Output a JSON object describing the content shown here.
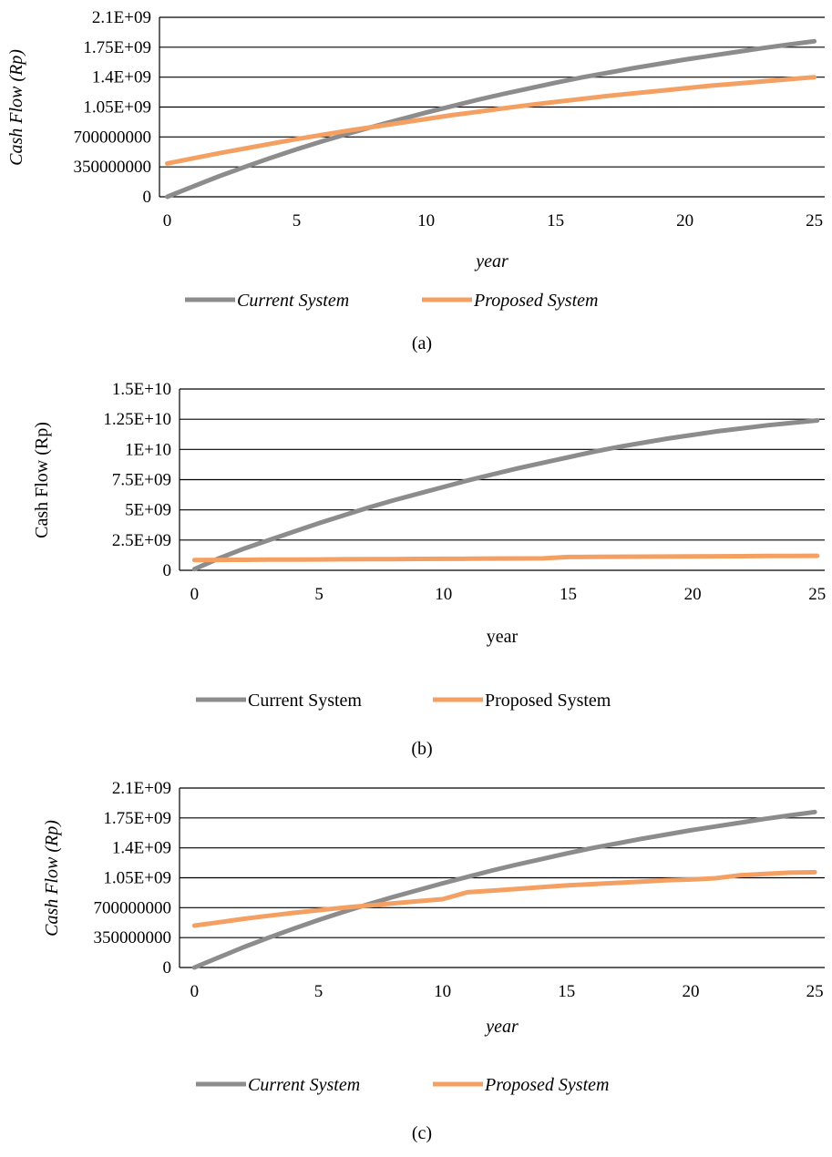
{
  "chart_data": [
    {
      "type": "line",
      "panel_label": "(a)",
      "xlabel": "year",
      "ylabel": "Cash Flow (Rp)",
      "italic_labels": true,
      "xlim": [
        -0.3,
        25.4
      ],
      "ylim": [
        0,
        2100000000
      ],
      "xticks": [
        "0",
        "5",
        "10",
        "15",
        "20",
        "25"
      ],
      "yticks": [
        "0",
        "350000000",
        "700000000",
        "1.05E+09",
        "1.4E+09",
        "1.75E+09",
        "2.1E+09"
      ],
      "grid": "horizontal",
      "legend_position": "bottom",
      "x": [
        0,
        1,
        2,
        3,
        4,
        5,
        6,
        7,
        8,
        9,
        10,
        11,
        12,
        13,
        14,
        15,
        16,
        17,
        18,
        19,
        20,
        21,
        22,
        23,
        24,
        25
      ],
      "series": [
        {
          "name": "Current System",
          "color": "#8c8c8c",
          "values": [
            0,
            120000000,
            240000000,
            350000000,
            455000000,
            555000000,
            650000000,
            740000000,
            825000000,
            905000000,
            985000000,
            1060000000,
            1135000000,
            1205000000,
            1270000000,
            1335000000,
            1395000000,
            1450000000,
            1505000000,
            1555000000,
            1605000000,
            1650000000,
            1695000000,
            1740000000,
            1780000000,
            1820000000
          ]
        },
        {
          "name": "Proposed System",
          "color": "#f4a063",
          "values": [
            390000000,
            450000000,
            510000000,
            565000000,
            620000000,
            675000000,
            725000000,
            775000000,
            820000000,
            865000000,
            910000000,
            955000000,
            995000000,
            1035000000,
            1075000000,
            1110000000,
            1145000000,
            1180000000,
            1210000000,
            1240000000,
            1270000000,
            1300000000,
            1325000000,
            1350000000,
            1375000000,
            1400000000
          ]
        }
      ]
    },
    {
      "type": "line",
      "panel_label": "(b)",
      "xlabel": "year",
      "ylabel": "Cash Flow (Rp)",
      "italic_labels": false,
      "xlim": [
        -0.6,
        25.3
      ],
      "ylim": [
        0,
        15000000000
      ],
      "xticks": [
        "0",
        "5",
        "10",
        "15",
        "20",
        "25"
      ],
      "yticks": [
        "0",
        "2.5E+09",
        "5E+09",
        "7.5E+09",
        "1E+10",
        "1.25E+10",
        "1.5E+10"
      ],
      "grid": "horizontal",
      "legend_position": "bottom",
      "x": [
        0,
        1,
        2,
        3,
        4,
        5,
        6,
        7,
        8,
        9,
        10,
        11,
        12,
        13,
        14,
        15,
        16,
        17,
        18,
        19,
        20,
        21,
        22,
        23,
        24,
        25
      ],
      "series": [
        {
          "name": "Current System",
          "color": "#8c8c8c",
          "values": [
            100000000,
            1000000000,
            1800000000,
            2500000000,
            3200000000,
            3900000000,
            4550000000,
            5200000000,
            5800000000,
            6350000000,
            6900000000,
            7450000000,
            7950000000,
            8450000000,
            8900000000,
            9350000000,
            9800000000,
            10200000000,
            10550000000,
            10900000000,
            11200000000,
            11500000000,
            11750000000,
            12000000000,
            12200000000,
            12400000000
          ]
        },
        {
          "name": "Proposed System",
          "color": "#f4a063",
          "values": [
            850000000,
            860000000,
            870000000,
            880000000,
            890000000,
            900000000,
            910000000,
            920000000,
            930000000,
            940000000,
            950000000,
            960000000,
            970000000,
            980000000,
            990000000,
            1100000000,
            1110000000,
            1120000000,
            1130000000,
            1140000000,
            1150000000,
            1160000000,
            1170000000,
            1180000000,
            1190000000,
            1200000000
          ]
        }
      ]
    },
    {
      "type": "line",
      "panel_label": "(c)",
      "xlabel": "year",
      "ylabel": "Cash Flow (Rp)",
      "italic_labels": true,
      "xlim": [
        -0.6,
        25.4
      ],
      "ylim": [
        0,
        2100000000
      ],
      "xticks": [
        "0",
        "5",
        "10",
        "15",
        "20",
        "25"
      ],
      "yticks": [
        "0",
        "350000000",
        "700000000",
        "1.05E+09",
        "1.4E+09",
        "1.75E+09",
        "2.1E+09"
      ],
      "grid": "horizontal",
      "legend_position": "bottom",
      "x": [
        0,
        1,
        2,
        3,
        4,
        5,
        6,
        7,
        8,
        9,
        10,
        11,
        12,
        13,
        14,
        15,
        16,
        17,
        18,
        19,
        20,
        21,
        22,
        23,
        24,
        25
      ],
      "series": [
        {
          "name": "Current System",
          "color": "#8c8c8c",
          "values": [
            0,
            120000000,
            240000000,
            350000000,
            455000000,
            555000000,
            650000000,
            740000000,
            825000000,
            905000000,
            985000000,
            1060000000,
            1135000000,
            1205000000,
            1270000000,
            1335000000,
            1395000000,
            1450000000,
            1505000000,
            1555000000,
            1605000000,
            1650000000,
            1695000000,
            1740000000,
            1780000000,
            1820000000
          ]
        },
        {
          "name": "Proposed System",
          "color": "#f4a063",
          "values": [
            490000000,
            530000000,
            570000000,
            605000000,
            640000000,
            670000000,
            700000000,
            725000000,
            750000000,
            775000000,
            800000000,
            880000000,
            900000000,
            920000000,
            940000000,
            960000000,
            975000000,
            990000000,
            1005000000,
            1020000000,
            1030000000,
            1045000000,
            1080000000,
            1095000000,
            1110000000,
            1115000000
          ]
        }
      ]
    }
  ]
}
